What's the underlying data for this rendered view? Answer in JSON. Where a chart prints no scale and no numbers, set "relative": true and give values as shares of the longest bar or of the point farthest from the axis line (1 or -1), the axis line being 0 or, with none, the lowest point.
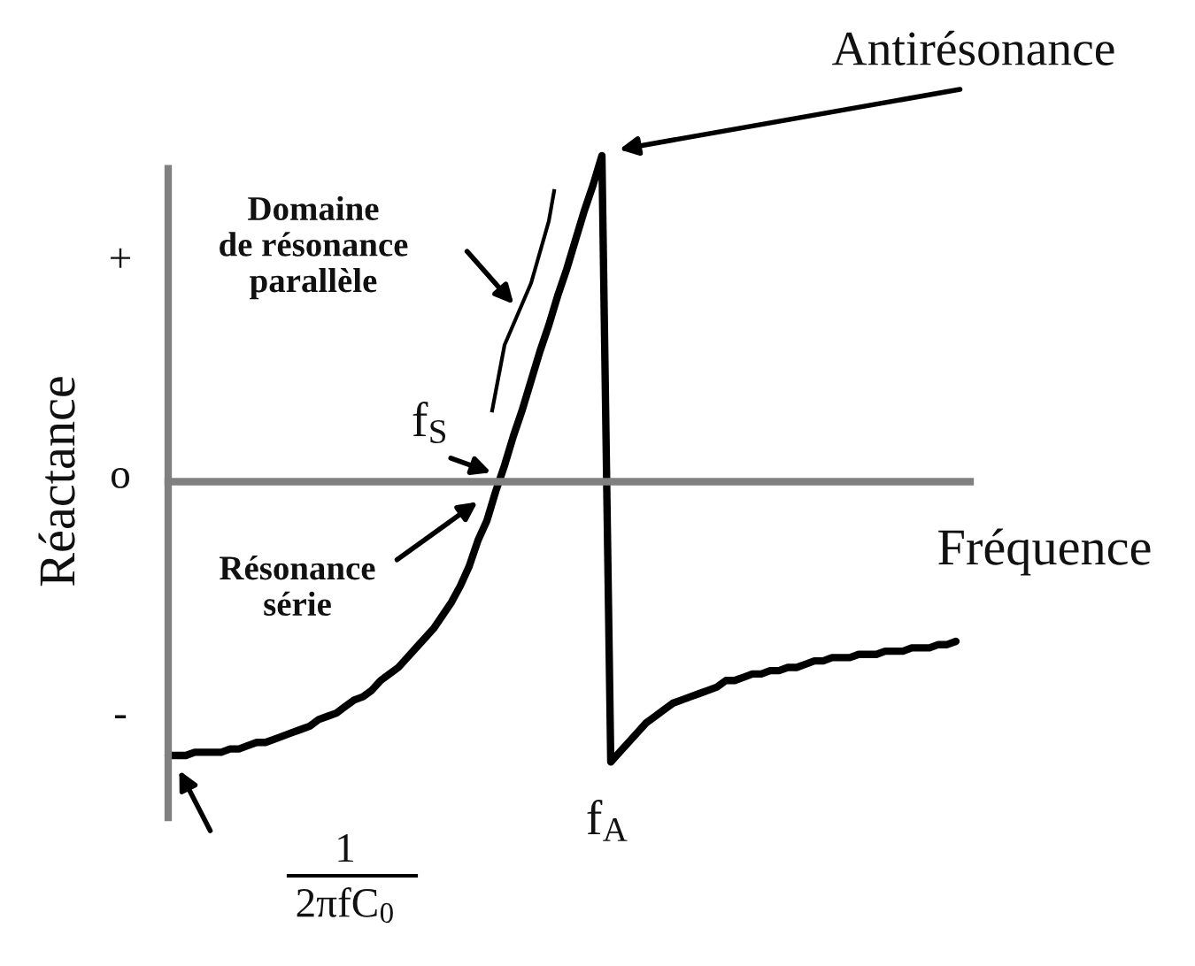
{
  "chart_data": {
    "type": "line",
    "relative": true,
    "xlabel": "Fréquence",
    "ylabel": "Réactance",
    "legend": false,
    "marker": "none",
    "line_style": "solid",
    "categories": [
      null,
      null,
      null,
      null,
      null,
      null,
      null,
      null,
      null,
      null,
      null,
      null,
      null,
      null,
      null,
      null,
      null,
      null,
      null,
      null,
      null,
      null,
      null,
      null,
      null,
      null,
      null,
      null,
      null,
      null,
      null,
      null,
      null,
      null,
      null,
      null,
      null,
      null,
      null,
      null,
      null,
      null,
      null,
      null,
      null,
      null,
      null,
      null,
      null,
      null,
      null,
      null,
      null,
      null,
      null,
      null,
      null,
      null,
      null,
      null,
      null,
      null,
      null,
      null,
      null,
      null,
      null,
      null,
      null,
      null,
      null,
      null,
      null,
      null,
      null,
      null,
      null,
      null,
      null,
      null,
      null,
      null,
      null,
      null,
      null,
      null,
      null,
      null,
      null,
      null
    ],
    "series": [
      {
        "color": "#000000",
        "values": [
          -0.84,
          -0.84,
          -0.84,
          -0.83,
          -0.83,
          -0.83,
          -0.83,
          -0.82,
          -0.82,
          -0.81,
          -0.8,
          -0.8,
          -0.79,
          -0.78,
          -0.77,
          -0.76,
          -0.75,
          -0.73,
          -0.72,
          -0.71,
          -0.69,
          -0.67,
          -0.66,
          -0.64,
          -0.61,
          -0.59,
          -0.57,
          -0.54,
          -0.51,
          -0.48,
          -0.45,
          -0.41,
          -0.37,
          -0.32,
          -0.26,
          -0.18,
          -0.12,
          -0.03,
          0.05,
          0.14,
          0.22,
          0.31,
          0.4,
          0.48,
          0.57,
          0.65,
          0.74,
          0.83,
          0.91,
          1,
          -0.86,
          -0.83,
          -0.8,
          -0.77,
          -0.74,
          -0.72,
          -0.7,
          -0.68,
          -0.67,
          -0.66,
          -0.65,
          -0.64,
          -0.63,
          -0.61,
          -0.61,
          -0.6,
          -0.59,
          -0.59,
          -0.58,
          -0.58,
          -0.57,
          -0.57,
          -0.56,
          -0.55,
          -0.55,
          -0.54,
          -0.54,
          -0.54,
          -0.53,
          -0.53,
          -0.53,
          -0.52,
          -0.52,
          -0.52,
          -0.51,
          -0.51,
          -0.51,
          -0.5,
          -0.5,
          -0.49
        ]
      }
    ],
    "annotations": [
      "+",
      "o",
      "-",
      "Antirésonance",
      "Domaine\nde résonance\nparallèle",
      "f$_{S}$",
      "Résonance\nsérie",
      "f$_{A}$",
      "1\n2πfC$_{0}$"
    ]
  }
}
